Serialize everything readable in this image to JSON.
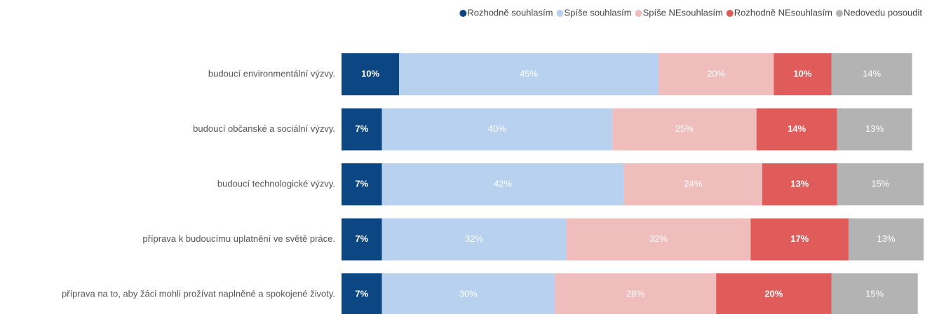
{
  "chart_data": {
    "type": "stacked-bar",
    "categories": [
      "budoucí environmentální výzvy.",
      "budoucí občanské a sociální výzvy.",
      "budoucí technologické výzvy.",
      "příprava k budoucímu uplatnění ve světě práce.",
      "příprava na to, aby žáci mohli prožívat naplněné a spokojené životy."
    ],
    "series": [
      {
        "name": "Rozhodně souhlasím",
        "color": "#0d4783",
        "values": [
          10,
          7,
          7,
          7,
          7
        ],
        "value_labels": [
          "10%",
          "7%",
          "7%",
          "7%",
          "7%"
        ]
      },
      {
        "name": "Spíše souhlasím",
        "color": "#b8d1ef",
        "values": [
          45,
          40,
          42,
          32,
          30
        ],
        "value_labels": [
          "45%",
          "40%",
          "42%",
          "32%",
          "30%"
        ]
      },
      {
        "name": "Spíše NEsouhlasím",
        "color": "#f0bdbd",
        "values": [
          20,
          25,
          24,
          32,
          28
        ],
        "value_labels": [
          "20%",
          "25%",
          "24%",
          "32%",
          "28%"
        ]
      },
      {
        "name": "Rozhodně NEsouhlasím",
        "color": "#e05c5a",
        "values": [
          10,
          14,
          13,
          17,
          20
        ],
        "value_labels": [
          "10%",
          "14%",
          "13%",
          "17%",
          "20%"
        ]
      },
      {
        "name": "Nedovedu posoudit",
        "color": "#b3b3b3",
        "values": [
          14,
          13,
          15,
          13,
          15
        ],
        "value_labels": [
          "14%",
          "13%",
          "15%",
          "13%",
          "15%"
        ]
      }
    ],
    "xlim": [
      0,
      101
    ],
    "legend": "top-right"
  }
}
